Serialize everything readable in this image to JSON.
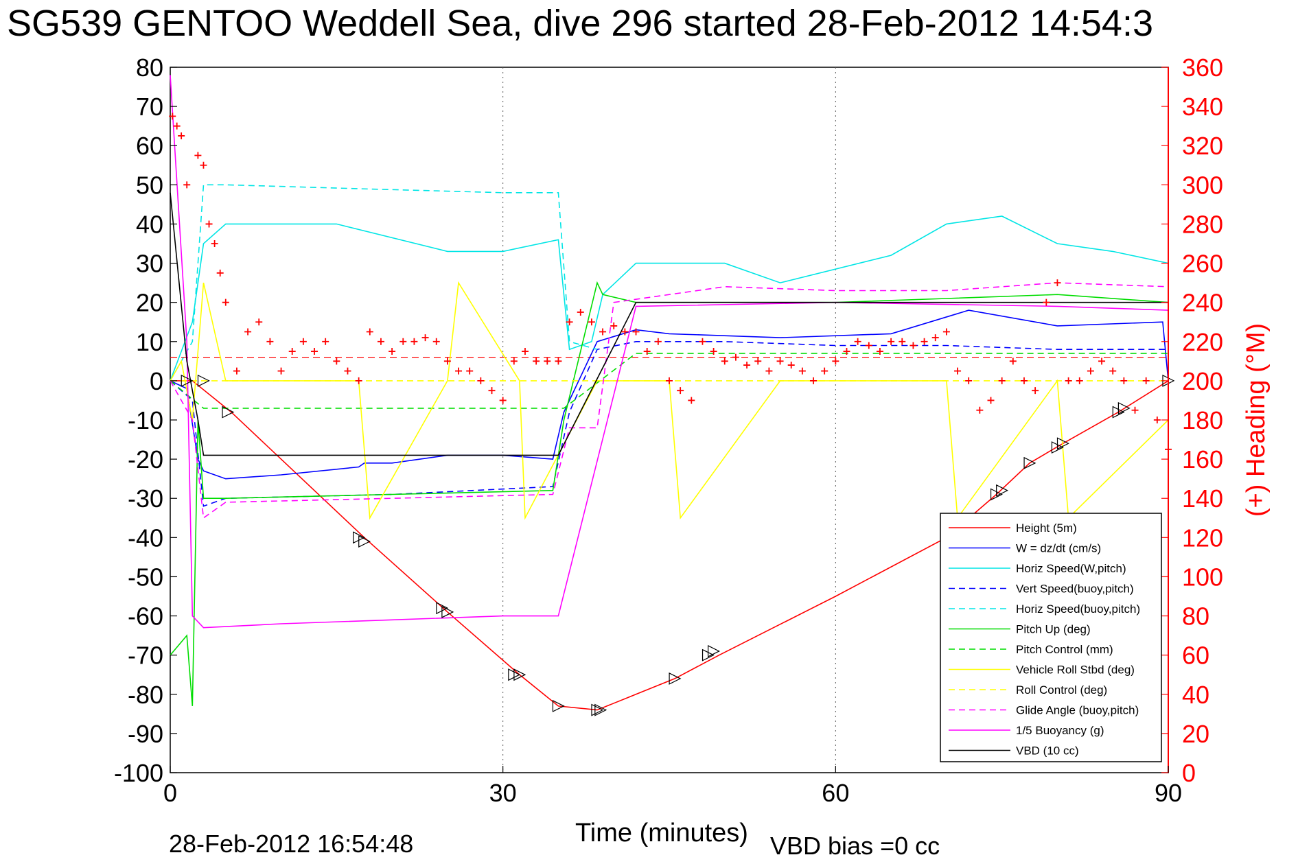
{
  "chart_data": {
    "type": "line",
    "title": "SG539 GENTOO Weddell Sea, dive 296 started 28-Feb-2012 14:54:3",
    "xlabel": "Time (minutes)",
    "ylabel": "",
    "ylabel_right": "(+) Heading (°M)",
    "footer_timestamp": "28-Feb-2012 16:54:48",
    "footer_note": "VBD bias =0 cc",
    "xlim": [
      0,
      90
    ],
    "ylim": [
      -100,
      80
    ],
    "ylim_right": [
      0,
      360
    ],
    "x_ticks": [
      "0",
      "30",
      "60",
      "90"
    ],
    "x_tick_values": [
      0,
      30,
      60,
      90
    ],
    "y_ticks": [
      "80",
      "70",
      "60",
      "50",
      "40",
      "30",
      "20",
      "10",
      "0",
      "-10",
      "-20",
      "-30",
      "-40",
      "-50",
      "-60",
      "-70",
      "-80",
      "-90",
      "-100"
    ],
    "y_tick_values": [
      80,
      70,
      60,
      50,
      40,
      30,
      20,
      10,
      0,
      -10,
      -20,
      -30,
      -40,
      -50,
      -60,
      -70,
      -80,
      -90,
      -100
    ],
    "y2_ticks": [
      "360",
      "340",
      "320",
      "300",
      "280",
      "260",
      "240",
      "220",
      "200",
      "180",
      "160",
      "140",
      "120",
      "100",
      "80",
      "60",
      "40",
      "20",
      "0"
    ],
    "y2_tick_values": [
      360,
      340,
      320,
      300,
      280,
      260,
      240,
      220,
      200,
      180,
      160,
      140,
      120,
      100,
      80,
      60,
      40,
      20,
      0
    ],
    "grid": "dotted at x ticks",
    "legend_position": "bottom-right",
    "heading_reference_deg": 212,
    "series": [
      {
        "name": "Height (5m)",
        "color": "#ff0000",
        "dash": "solid",
        "x": [
          0,
          2,
          5.5,
          17.5,
          25,
          31.5,
          35,
          38.5,
          42,
          45.5,
          49.5,
          60,
          70,
          74.5,
          77.5,
          80.5,
          85.5,
          90
        ],
        "y": [
          0,
          0,
          -8,
          -40,
          -59,
          -75,
          -83,
          -84,
          -80,
          -76,
          -70,
          -55,
          -40,
          -29,
          -21,
          -16,
          -8,
          0
        ]
      },
      {
        "name": "W = dz/dt (cm/s)",
        "color": "#0000ff",
        "dash": "solid",
        "x": [
          0,
          1.5,
          2.5,
          3,
          5,
          10,
          17,
          17.5,
          20,
          25,
          30,
          34.5,
          35.5,
          38.5,
          42,
          45,
          55,
          65,
          72,
          80,
          89.5,
          90
        ],
        "y": [
          0,
          -2,
          -20,
          -23,
          -25,
          -24,
          -22,
          -21,
          -21,
          -19,
          -19,
          -20,
          -8,
          10,
          13,
          12,
          11,
          12,
          18,
          14,
          15,
          0
        ]
      },
      {
        "name": "Horiz Speed(W,pitch)",
        "color": "#00e5e5",
        "dash": "solid",
        "x": [
          0,
          2,
          3,
          5,
          15,
          25,
          30,
          35,
          36,
          38,
          39,
          42,
          50,
          55,
          65,
          70,
          75,
          80,
          85,
          90
        ],
        "y": [
          0,
          15,
          35,
          40,
          40,
          33,
          33,
          36,
          8,
          10,
          22,
          30,
          30,
          25,
          32,
          40,
          42,
          35,
          33,
          30
        ]
      },
      {
        "name": "Vert Speed(buoy,pitch)",
        "color": "#0000ff",
        "dash": "dashed",
        "x": [
          0,
          2,
          3,
          5,
          20,
          34.5,
          36,
          38.5,
          42,
          50,
          60,
          70,
          80,
          90
        ],
        "y": [
          0,
          -5,
          -32,
          -30,
          -29,
          -27,
          -8,
          8,
          10,
          10,
          9,
          9,
          8,
          8
        ]
      },
      {
        "name": "Horiz Speed(buoy,pitch)",
        "color": "#00e5e5",
        "dash": "dashed",
        "x": [
          0,
          2,
          3,
          5,
          17,
          30,
          35,
          36,
          38.5
        ],
        "y": [
          0,
          10,
          50,
          50,
          49,
          48,
          48,
          10,
          8
        ]
      },
      {
        "name": "Pitch Up (deg)",
        "color": "#00dd00",
        "dash": "solid",
        "x": [
          0,
          1.5,
          2,
          2.5,
          3,
          5,
          20,
          34.5,
          35.5,
          38.5,
          39,
          42,
          50,
          60,
          70,
          80,
          90
        ],
        "y": [
          -70,
          -65,
          -83,
          -10,
          -30,
          -30,
          -29,
          -28,
          -10,
          25,
          22,
          20,
          20,
          20,
          21,
          22,
          20
        ]
      },
      {
        "name": "Pitch Control (mm)",
        "color": "#00dd00",
        "dash": "dashed",
        "x": [
          0,
          3,
          35,
          35.5,
          42,
          70,
          90
        ],
        "y": [
          0,
          -7,
          -7,
          -7,
          7,
          7,
          7
        ]
      },
      {
        "name": "Vehicle Roll Stbd (deg)",
        "color": "#ffff00",
        "dash": "solid",
        "x": [
          0,
          1,
          2,
          3,
          5,
          17,
          18,
          25,
          26,
          31.5,
          32,
          38.5,
          45,
          46,
          55,
          70,
          71,
          80,
          81,
          90
        ],
        "y": [
          0,
          5,
          -10,
          25,
          0,
          0,
          -35,
          0,
          25,
          0,
          -35,
          0,
          0,
          -35,
          0,
          0,
          -35,
          0,
          -35,
          -10
        ]
      },
      {
        "name": "Roll Control (deg)",
        "color": "#ffff00",
        "dash": "dashed",
        "x": [
          0,
          5,
          30,
          40,
          90
        ],
        "y": [
          0,
          0,
          0,
          0,
          0
        ]
      },
      {
        "name": "Glide Angle (buoy,pitch)",
        "color": "#ff00ff",
        "dash": "dashed",
        "x": [
          0,
          2,
          3,
          5,
          20,
          34.5,
          36,
          38.5,
          40,
          50,
          60,
          70,
          80,
          90
        ],
        "y": [
          0,
          -10,
          -35,
          -31,
          -30,
          -29,
          -12,
          -12,
          20,
          24,
          23,
          23,
          25,
          24
        ]
      },
      {
        "name": "1/5 Buoyancy (g)",
        "color": "#ff00ff",
        "dash": "solid",
        "x": [
          0,
          1.5,
          2,
          3,
          10,
          20,
          30,
          35,
          42,
          60,
          80,
          90
        ],
        "y": [
          78,
          10,
          -60,
          -63,
          -62,
          -61,
          -60,
          -60,
          19,
          20,
          19,
          18
        ]
      },
      {
        "name": "VBD (10 cc)",
        "color": "#000000",
        "dash": "solid",
        "x": [
          0,
          1.5,
          2.5,
          3,
          30,
          35,
          42,
          60,
          90
        ],
        "y": [
          48,
          5,
          -10,
          -19,
          -19,
          -19,
          20,
          20,
          20
        ]
      }
    ],
    "heading_points": {
      "name": "(+) Heading",
      "color": "#ff0000",
      "marker": "+",
      "x": [
        0.2,
        0.6,
        1,
        1.5,
        2.5,
        3,
        3.5,
        4,
        4.5,
        5,
        6,
        7,
        8,
        9,
        10,
        11,
        12,
        13,
        14,
        15,
        16,
        17,
        18,
        19,
        20,
        21,
        22,
        23,
        24,
        25,
        26,
        27,
        28,
        29,
        30,
        31,
        32,
        33,
        34,
        35,
        36,
        37,
        38,
        39,
        40,
        41,
        42,
        43,
        44,
        45,
        46,
        47,
        48,
        49,
        50,
        51,
        52,
        53,
        54,
        55,
        56,
        57,
        58,
        59,
        60,
        61,
        62,
        63,
        64,
        65,
        66,
        67,
        68,
        69,
        70,
        71,
        72,
        73,
        74,
        75,
        76,
        77,
        78,
        79,
        80,
        81,
        82,
        83,
        84,
        85,
        86,
        87,
        88,
        89,
        90
      ],
      "y": [
        335,
        330,
        325,
        300,
        315,
        310,
        280,
        270,
        255,
        240,
        205,
        225,
        230,
        220,
        205,
        215,
        220,
        215,
        220,
        210,
        205,
        200,
        225,
        220,
        215,
        220,
        220,
        222,
        220,
        210,
        205,
        205,
        200,
        195,
        190,
        210,
        215,
        210,
        210,
        210,
        230,
        235,
        230,
        225,
        228,
        225,
        225,
        215,
        220,
        200,
        195,
        190,
        220,
        215,
        210,
        212,
        208,
        210,
        205,
        210,
        208,
        205,
        200,
        205,
        210,
        215,
        220,
        218,
        215,
        220,
        220,
        218,
        220,
        222,
        225,
        205,
        200,
        185,
        190,
        200,
        210,
        200,
        195,
        240,
        250,
        200,
        200,
        205,
        210,
        205,
        200,
        185,
        200,
        180,
        165
      ]
    },
    "triangle_markers": {
      "x": [
        1.5,
        3,
        5.2,
        17,
        17.5,
        24.5,
        25,
        31,
        31.5,
        35,
        38.5,
        38.8,
        45.5,
        48.5,
        49,
        74.5,
        75,
        77.5,
        80,
        80.5,
        85.5,
        86,
        90
      ],
      "y": [
        0,
        0,
        -8,
        -40,
        -41,
        -58,
        -59,
        -75,
        -75,
        -83,
        -84,
        -84,
        -76,
        -70,
        -69,
        -29,
        -28,
        -21,
        -17,
        -16,
        -8,
        -7,
        0
      ]
    }
  }
}
